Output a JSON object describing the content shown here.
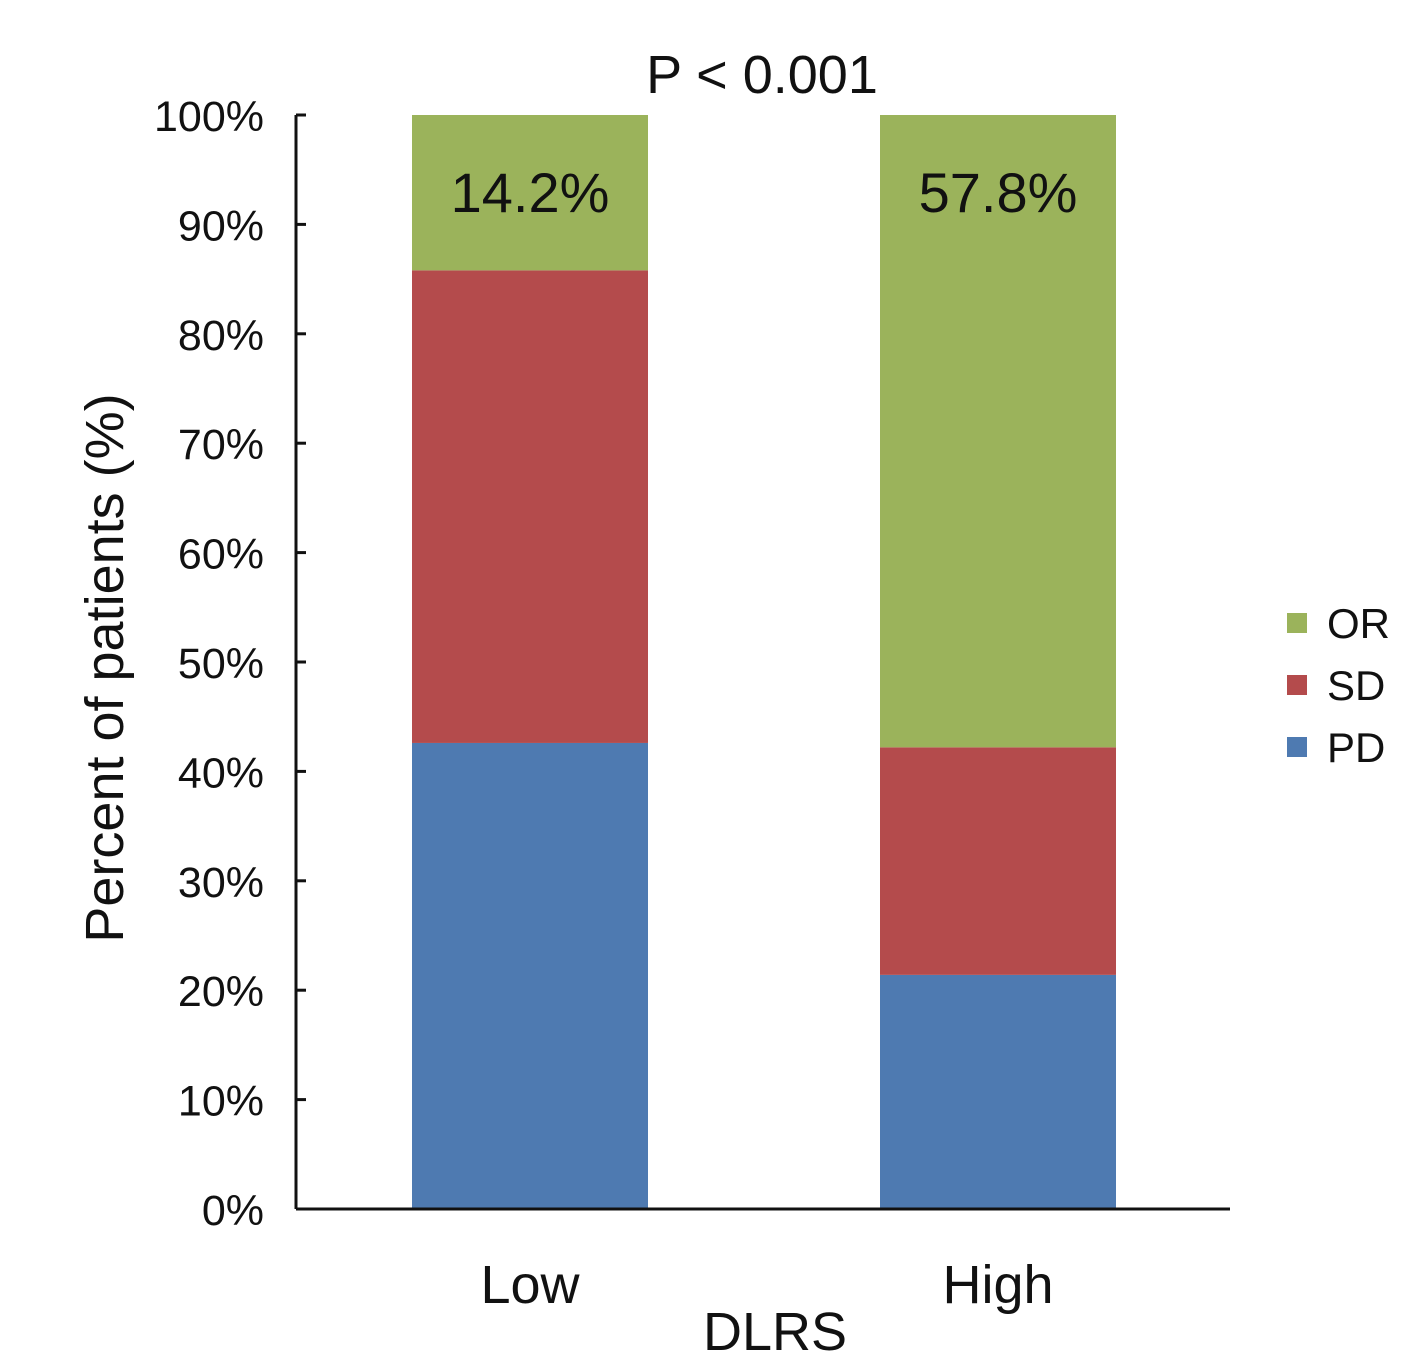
{
  "chart_data": {
    "type": "bar",
    "stacked": true,
    "title": "P < 0.001",
    "xlabel": "DLRS",
    "ylabel": "Percent of patients (%)",
    "categories": [
      "Low",
      "High"
    ],
    "ylim": [
      0,
      100
    ],
    "yticks": [
      0,
      10,
      20,
      30,
      40,
      50,
      60,
      70,
      80,
      90,
      100
    ],
    "ytick_labels": [
      "0%",
      "10%",
      "20%",
      "30%",
      "40%",
      "50%",
      "60%",
      "70%",
      "80%",
      "90%",
      "100%"
    ],
    "grid": false,
    "legend_position": "right",
    "series": [
      {
        "name": "PD",
        "color": "#4e7ab1",
        "values": [
          42.6,
          21.4
        ]
      },
      {
        "name": "SD",
        "color": "#b44b4c",
        "values": [
          43.2,
          20.8
        ]
      },
      {
        "name": "OR",
        "color": "#9bb35b",
        "values": [
          14.2,
          57.8
        ]
      }
    ],
    "legend_order": [
      "OR",
      "SD",
      "PD"
    ],
    "annotations": [
      "14.2%",
      "57.8%"
    ]
  }
}
